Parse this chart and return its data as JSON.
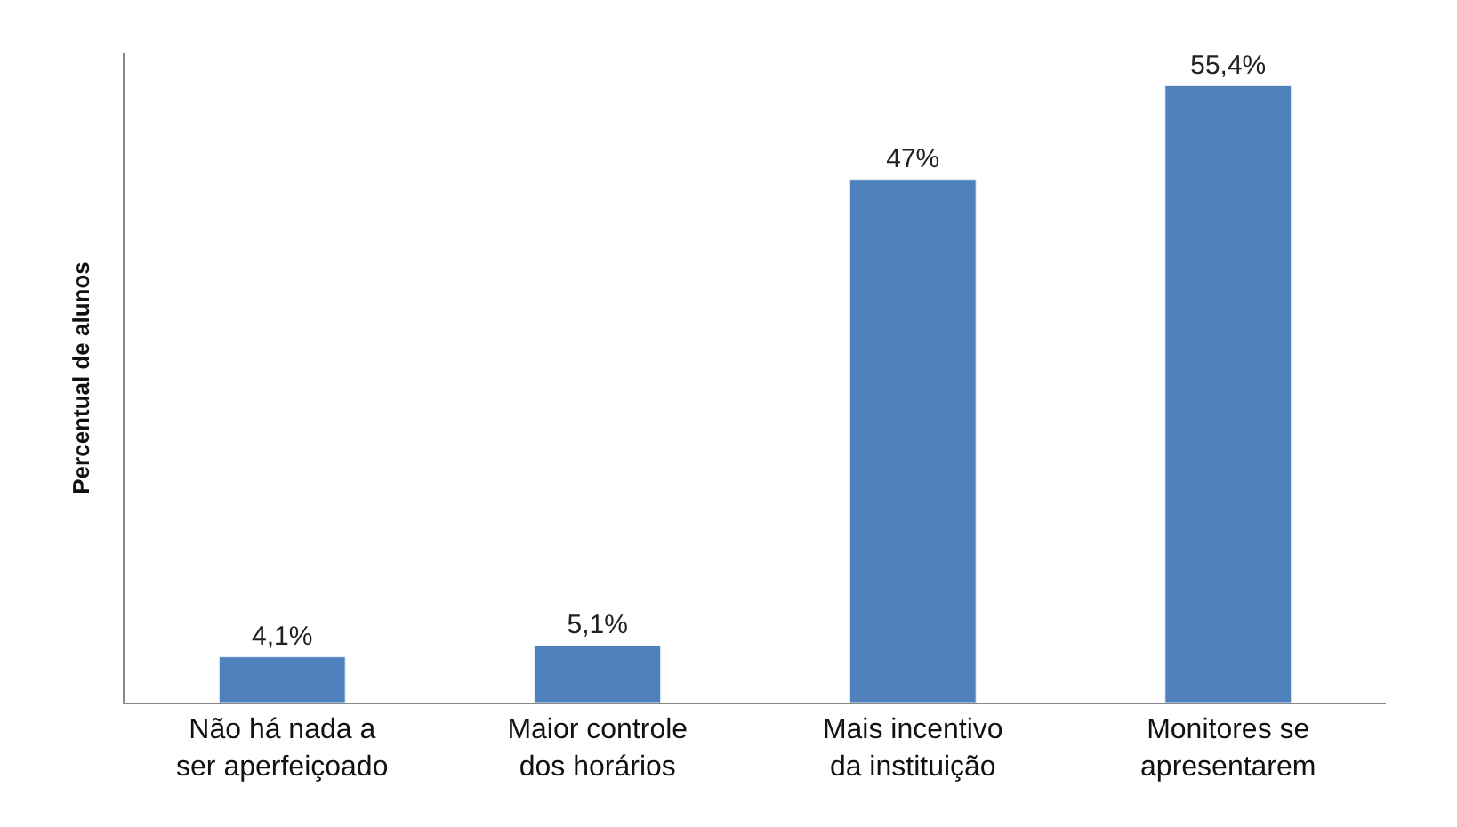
{
  "chart_data": {
    "type": "bar",
    "ylabel": "Percentual de alunos",
    "categories": [
      "Não há nada a ser aperfeiçoado",
      "Maior controle dos horários",
      "Mais incentivo da instituição",
      "Monitores se apresentarem"
    ],
    "values": [
      4.1,
      5.1,
      47,
      55.4
    ],
    "value_labels": [
      "4,1%",
      "5,1%",
      "47%",
      "55,4%"
    ],
    "color": "#4f81bd"
  }
}
